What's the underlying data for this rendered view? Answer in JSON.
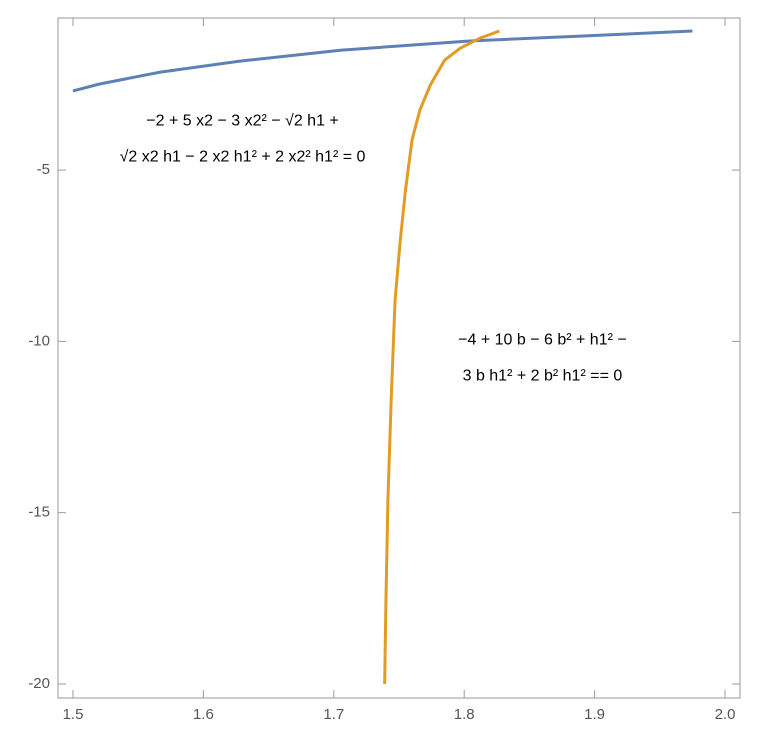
{
  "chart_data": {
    "type": "line",
    "series": [
      {
        "color": "#5e81b5",
        "x": [
          1.5,
          1.52,
          1.567,
          1.628,
          1.705,
          1.804,
          1.889,
          1.975
        ],
        "values": [
          -2.69,
          -2.49,
          -2.14,
          -1.82,
          -1.5,
          -1.23,
          -1.09,
          -0.94
        ]
      },
      {
        "color": "#e19c24",
        "x": [
          1.739,
          1.74,
          1.7415,
          1.744,
          1.747,
          1.751,
          1.755,
          1.76,
          1.766,
          1.774,
          1.785,
          1.797,
          1.812,
          1.827
        ],
        "values": [
          -20,
          -17.55,
          -14.63,
          -11.71,
          -8.79,
          -7.04,
          -5.58,
          -4.12,
          -3.25,
          -2.52,
          -1.79,
          -1.44,
          -1.15,
          -0.94
        ]
      }
    ],
    "annotations": [
      {
        "lines": [
          "−2 + 5 x2 − 3 x2² − √2 h1 +",
          "√2 x2 h1 − 2 x2 h1² + 2 x2² h1² = 0"
        ],
        "x": 1.63,
        "y": -4.1
      },
      {
        "lines": [
          "−4 + 10 b − 6 b² + h1² −",
          "3 b h1² + 2 b² h1² == 0"
        ],
        "x": 1.86,
        "y": -10.5
      }
    ],
    "xlim": [
      1.4885,
      2.0115
    ],
    "ylim": [
      -20.41,
      -0.56
    ],
    "xticks": [
      1.5,
      1.6,
      1.7,
      1.8,
      1.9,
      {
        "value": 2,
        "label": "2.0"
      }
    ],
    "yticks": [
      -5,
      -10,
      -15,
      -20
    ]
  }
}
